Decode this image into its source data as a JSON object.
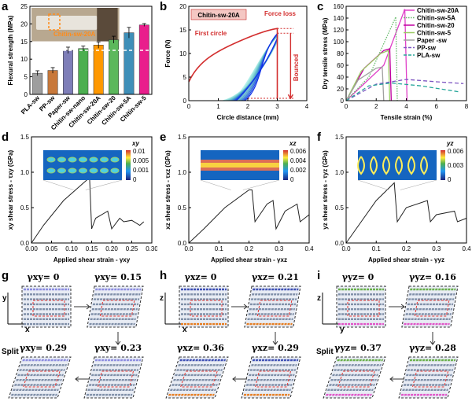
{
  "panels": {
    "a": {
      "label": "a",
      "chart_data": {
        "type": "bar",
        "ylabel": "Flexural strength (MPa)",
        "ylim": [
          0,
          25
        ],
        "yticks": [
          0,
          5,
          10,
          15,
          20,
          25
        ],
        "categories": [
          "PLA-sw",
          "PP-sw",
          "Paper-sw",
          "Chitin-sw-nano",
          "Chitin-sw-20A",
          "Chitin-sw-20",
          "Chitin-sw-5A",
          "Chitin-sw-5"
        ],
        "values": [
          6.0,
          6.8,
          12.5,
          13.0,
          14.0,
          15.5,
          17.5,
          19.7
        ],
        "errors": [
          0.7,
          0.8,
          0.9,
          0.7,
          0.9,
          1.0,
          1.5,
          0.4
        ],
        "colors": [
          "#9e9e9e",
          "#c8783a",
          "#7e7eb8",
          "#4caf50",
          "#ff9800",
          "#5cb85c",
          "#3f8fb8",
          "#e91e8c"
        ],
        "dashed_ref": 12.5,
        "inset_label": "Chitin-sw-20A"
      }
    },
    "b": {
      "label": "b",
      "chart_data": {
        "type": "line",
        "xlabel": "Circle distance (mm)",
        "ylabel": "Force (N)",
        "xlim": [
          0,
          4
        ],
        "ylim": [
          0,
          20
        ],
        "xticks": [
          0,
          1,
          2,
          3,
          4
        ],
        "yticks": [
          0,
          5,
          10,
          15,
          20
        ],
        "tag": "Chitin-sw-20A",
        "annotations": [
          "First circle",
          "Force loss",
          "Bounced"
        ]
      }
    },
    "c": {
      "label": "c",
      "chart_data": {
        "type": "line",
        "xlabel": "Tensile strain (%)",
        "ylabel": "Dry tensile stress (MPa)",
        "xlim": [
          0,
          8
        ],
        "ylim": [
          0,
          160
        ],
        "xticks": [
          0,
          2,
          4,
          6,
          8
        ],
        "yticks": [
          0,
          20,
          40,
          60,
          80,
          100,
          120,
          140,
          160
        ],
        "series": [
          {
            "name": "Chitin-sw-20A",
            "color": "#e040c8",
            "dash": "solid",
            "x": [
              0,
              2.5,
              3.9,
              4.05
            ],
            "y": [
              0,
              60,
              155,
              0
            ]
          },
          {
            "name": "Chitin-sw-5A",
            "color": "#66bb6a",
            "dash": "dot",
            "x": [
              0,
              1.5,
              3.3,
              3.4
            ],
            "y": [
              0,
              40,
              142,
              0
            ]
          },
          {
            "name": "Chitin-sw-20",
            "color": "#c000a0",
            "dash": "solid",
            "x": [
              0,
              1.2,
              2.5,
              2.9,
              3.0
            ],
            "y": [
              0,
              55,
              85,
              88,
              0
            ]
          },
          {
            "name": "Chitin-sw-5",
            "color": "#9ccc65",
            "dash": "solid",
            "x": [
              0,
              1.0,
              2.3,
              2.8,
              2.9
            ],
            "y": [
              0,
              50,
              80,
              85,
              0
            ]
          },
          {
            "name": "Paper -sw",
            "color": "#a0a0a0",
            "dash": "solid",
            "x": [
              0,
              0.8,
              2.0,
              2.4,
              2.5
            ],
            "y": [
              0,
              35,
              55,
              57,
              0
            ]
          },
          {
            "name": "PP-sw",
            "color": "#7e57c2",
            "dash": "dash",
            "x": [
              0,
              2,
              4,
              6,
              7.8
            ],
            "y": [
              0,
              28,
              36,
              32,
              29
            ]
          },
          {
            "name": "PLA-sw",
            "color": "#26a69a",
            "dash": "dash",
            "x": [
              0,
              1.5,
              3,
              5,
              7.5
            ],
            "y": [
              0,
              25,
              30,
              25,
              15
            ]
          }
        ]
      }
    },
    "d": {
      "label": "d",
      "chart_data": {
        "type": "line",
        "xlabel": "Applied shear strain - γxy",
        "ylabel": "xy shear stress - τxy (GPa)",
        "xlim": [
          0,
          0.3
        ],
        "ylim": [
          0,
          1.5
        ],
        "xticks": [
          "0.00",
          "0.05",
          "0.10",
          "0.15",
          "0.20",
          "0.25",
          "0.30"
        ],
        "yticks": [
          "0.0",
          "0.5",
          "1.0",
          "1.5"
        ],
        "x": [
          0,
          0.03,
          0.08,
          0.14,
          0.145,
          0.15,
          0.16,
          0.19,
          0.2,
          0.22,
          0.23,
          0.25,
          0.27,
          0.28
        ],
        "y": [
          0,
          0.25,
          0.6,
          0.9,
          0.9,
          0.2,
          0.35,
          0.45,
          0.2,
          0.35,
          0.3,
          0.32,
          0.25,
          0.3
        ],
        "colormap": {
          "title": "xy",
          "ticks": [
            "0.01",
            "0.005",
            "0.001",
            "0"
          ]
        }
      }
    },
    "e": {
      "label": "e",
      "chart_data": {
        "type": "line",
        "xlabel": "Applied shear strain - γxz",
        "ylabel": "xz shear stress - τxz (GPa)",
        "xlim": [
          0,
          0.4
        ],
        "ylim": [
          0,
          1.5
        ],
        "xticks": [
          "0.0",
          "0.1",
          "0.2",
          "0.3",
          "0.4"
        ],
        "yticks": [
          "0.0",
          "0.5",
          "1.0",
          "1.5"
        ],
        "x": [
          0,
          0.05,
          0.12,
          0.2,
          0.21,
          0.22,
          0.26,
          0.28,
          0.29,
          0.32,
          0.36,
          0.37,
          0.4
        ],
        "y": [
          0,
          0.2,
          0.5,
          0.75,
          0.75,
          0.3,
          0.55,
          0.6,
          0.2,
          0.45,
          0.55,
          0.3,
          0.4
        ],
        "colormap": {
          "title": "xz",
          "ticks": [
            "0.006",
            "0.004",
            "0.002",
            "0"
          ]
        }
      }
    },
    "f": {
      "label": "f",
      "chart_data": {
        "type": "line",
        "xlabel": "Applied shear strain - γyz",
        "ylabel": "yz shear stress - τyz (GPa)",
        "xlim": [
          0,
          0.4
        ],
        "ylim": [
          0,
          1.5
        ],
        "xticks": [
          "0.0",
          "0.1",
          "0.2",
          "0.3",
          "0.4"
        ],
        "yticks": [
          "0.0",
          "0.5",
          "1.0",
          "1.5"
        ],
        "x": [
          0,
          0.05,
          0.1,
          0.16,
          0.17,
          0.2,
          0.27,
          0.28,
          0.3,
          0.36,
          0.37,
          0.4
        ],
        "y": [
          0,
          0.3,
          0.6,
          0.85,
          0.3,
          0.5,
          0.6,
          0.3,
          0.4,
          0.45,
          0.3,
          0.35
        ],
        "colormap": {
          "title": "yz",
          "ticks": [
            "0.006",
            "0.003",
            "0"
          ]
        }
      }
    },
    "g": {
      "label": "g",
      "frames": [
        "γxy= 0",
        "γxy= 0.15",
        "γxy= 0.29",
        "γxy= 0.23"
      ],
      "split": "Split",
      "axes": [
        "y",
        "x"
      ]
    },
    "h": {
      "label": "h",
      "frames": [
        "γxz= 0",
        "γxz= 0.21",
        "γxz= 0.36",
        "γxz= 0.29"
      ],
      "axes": [
        "z",
        "x"
      ]
    },
    "i": {
      "label": "i",
      "frames": [
        "γyz= 0",
        "γyz= 0.16",
        "γyz= 0.37",
        "γyz= 0.28"
      ],
      "split": "Split",
      "axes": [
        "z",
        "y"
      ]
    }
  }
}
